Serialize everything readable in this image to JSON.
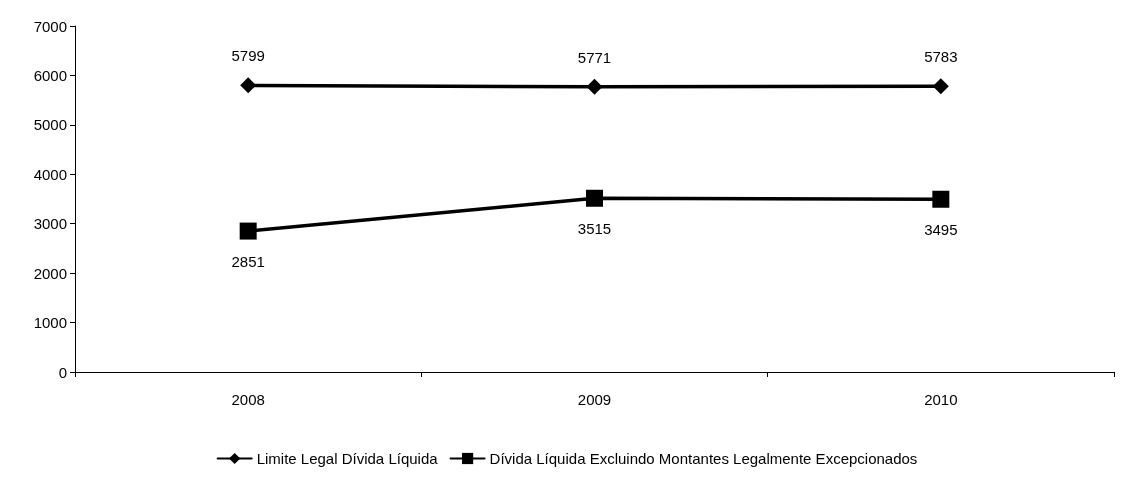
{
  "chart_data": {
    "type": "line",
    "categories": [
      "2008",
      "2009",
      "2010"
    ],
    "series": [
      {
        "name": "Limite Legal Dívida Líquida",
        "color": "#000000",
        "marker": "diamond",
        "values": [
          5799,
          5771,
          5783
        ]
      },
      {
        "name": "Dívida Líquida Excluindo Montantes Legalmente Excepcionados",
        "color": "#000000",
        "marker": "square",
        "values": [
          2851,
          3515,
          3495
        ]
      }
    ],
    "ylim": [
      0,
      7000
    ],
    "yticks": [
      0,
      1000,
      2000,
      3000,
      4000,
      5000,
      6000,
      7000
    ],
    "grid": false,
    "legend": "bottom",
    "data_labels": true,
    "line_style": "solid"
  }
}
